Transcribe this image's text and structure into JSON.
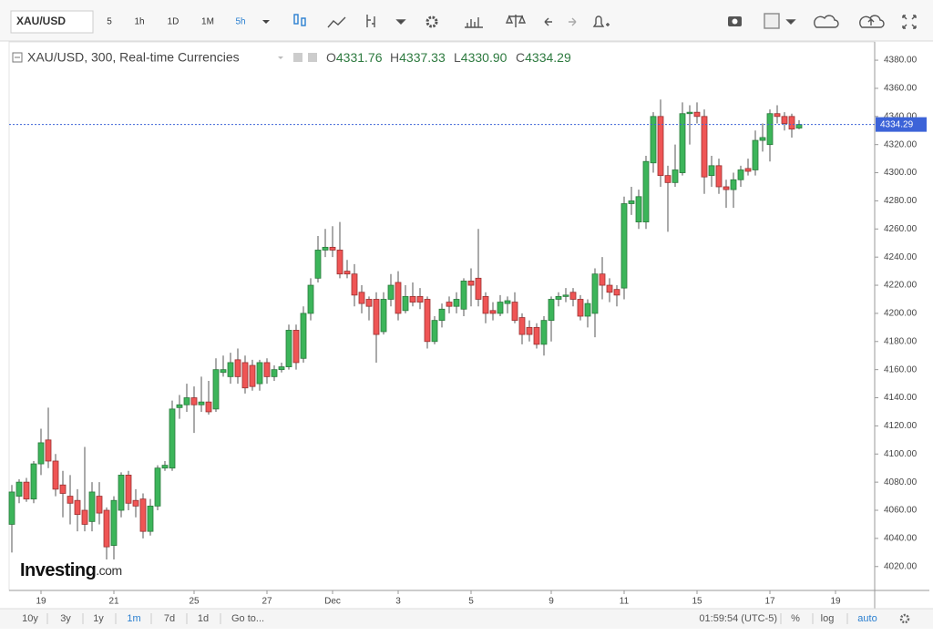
{
  "toolbar": {
    "symbol": "XAU/USD",
    "intervals": [
      "5",
      "1h",
      "1D",
      "1M",
      "5h"
    ],
    "active_interval": "5h"
  },
  "bottom_bar": {
    "ranges": [
      "10y",
      "3y",
      "1y",
      "1m",
      "7d",
      "1d"
    ],
    "active_range": "1m",
    "goto": "Go to...",
    "clock": "01:59:54 (UTC-5)",
    "scale_options": [
      "%",
      "log",
      "auto"
    ],
    "active_scale": "auto"
  },
  "watermark": {
    "brand": "Investing",
    "suffix": ".com"
  },
  "chart_data": {
    "type": "candlestick",
    "title": "XAU/USD, 300, Real-time Currencies",
    "ohlc_labels": [
      "O",
      "H",
      "L",
      "C"
    ],
    "ohlc_values": [
      "4331.76",
      "4337.33",
      "4330.90",
      "4334.29"
    ],
    "up_color": "#3cb55a",
    "down_color": "#ef5555",
    "last_price": 4334.29,
    "last_price_color": "#3c63d8",
    "categories": [
      null,
      null,
      null,
      null,
      "19",
      null,
      null,
      null,
      null,
      null,
      null,
      null,
      null,
      null,
      "21",
      null,
      null,
      null,
      null,
      null,
      null,
      null,
      null,
      null,
      null,
      "25",
      null,
      null,
      null,
      null,
      null,
      null,
      null,
      null,
      null,
      "27",
      null,
      null,
      null,
      null,
      null,
      null,
      null,
      null,
      "Dec",
      null,
      null,
      null,
      null,
      null,
      null,
      null,
      null,
      "3",
      null,
      null,
      null,
      null,
      null,
      null,
      null,
      null,
      null,
      "5",
      null,
      null,
      null,
      null,
      null,
      null,
      null,
      null,
      null,
      null,
      "9",
      null,
      null,
      null,
      null,
      null,
      null,
      null,
      null,
      null,
      "11",
      null,
      null,
      null,
      null,
      null,
      null,
      null,
      null,
      null,
      "15",
      null,
      null,
      null,
      null,
      null,
      null,
      null,
      null,
      null,
      "17",
      null,
      null,
      null,
      null,
      null,
      null,
      null,
      null,
      "19"
    ],
    "open": [
      4050,
      4070,
      4080,
      4068,
      4093,
      4110,
      4095,
      4078,
      4070,
      4067,
      4060,
      4052,
      4070,
      4060,
      4035,
      4060,
      4085,
      4067,
      4068,
      4045,
      4063,
      4090,
      4090,
      4133,
      4135,
      4140,
      4135,
      4137,
      4132,
      4158,
      4155,
      4167,
      4165,
      4163,
      4150,
      4165,
      4155,
      4160,
      4162,
      4188,
      4168,
      4200,
      4225,
      4245,
      4247,
      4245,
      4230,
      4228,
      4215,
      4210,
      4210,
      4187,
      4210,
      4222,
      4202,
      4212,
      4212,
      4210,
      4180,
      4195,
      4208,
      4205,
      4203,
      4223,
      4225,
      4212,
      4202,
      4200,
      4207,
      4208,
      4197,
      4190,
      4190,
      4178,
      4195,
      4210,
      4212,
      4215,
      4210,
      4198,
      4200,
      4228,
      4220,
      4217,
      4218,
      4278,
      4265,
      4265,
      4307,
      4340,
      4298,
      4293,
      4300,
      4342,
      4343,
      4340,
      4298,
      4305,
      4290,
      4288,
      4295,
      4303,
      4302,
      4323,
      4320,
      4342,
      4340,
      4340,
      4331.76,
      null,
      null,
      null,
      null,
      null
    ],
    "high": [
      4078,
      4082,
      4083,
      4095,
      4118,
      4133,
      4100,
      4088,
      4085,
      4075,
      4105,
      4080,
      4080,
      4062,
      4070,
      4087,
      4088,
      4075,
      4072,
      4068,
      4092,
      4095,
      4138,
      4142,
      4150,
      4148,
      4155,
      4152,
      4168,
      4170,
      4172,
      4175,
      4170,
      4167,
      4167,
      4168,
      4163,
      4165,
      4192,
      4192,
      4205,
      4225,
      4255,
      4260,
      4262,
      4265,
      4238,
      4235,
      4220,
      4212,
      4215,
      4215,
      4228,
      4230,
      4220,
      4222,
      4218,
      4212,
      4198,
      4207,
      4212,
      4215,
      4225,
      4232,
      4260,
      4215,
      4208,
      4213,
      4212,
      4215,
      4200,
      4195,
      4193,
      4198,
      4212,
      4215,
      4218,
      4218,
      4213,
      4210,
      4232,
      4240,
      4225,
      4220,
      4283,
      4290,
      4288,
      4312,
      4343,
      4352,
      4305,
      4320,
      4350,
      4348,
      4350,
      4345,
      4312,
      4310,
      4295,
      4300,
      4305,
      4310,
      4330,
      4335,
      4345,
      4348,
      4343,
      4342,
      4337.33,
      null,
      null,
      null,
      null,
      null
    ],
    "low": [
      4030,
      4065,
      4066,
      4065,
      4085,
      4090,
      4070,
      4055,
      4050,
      4045,
      4045,
      4045,
      4050,
      4025,
      4025,
      4055,
      4060,
      4055,
      4040,
      4042,
      4060,
      4088,
      4088,
      4125,
      4130,
      4115,
      4130,
      4128,
      4130,
      4155,
      4150,
      4150,
      4143,
      4145,
      4145,
      4150,
      4152,
      4158,
      4160,
      4160,
      4165,
      4195,
      4222,
      4240,
      4240,
      4225,
      4225,
      4205,
      4200,
      4195,
      4165,
      4185,
      4205,
      4195,
      4200,
      4205,
      4203,
      4175,
      4178,
      4190,
      4200,
      4200,
      4198,
      4205,
      4205,
      4193,
      4195,
      4198,
      4200,
      4193,
      4178,
      4180,
      4175,
      4170,
      4180,
      4205,
      4208,
      4205,
      4195,
      4190,
      4183,
      4210,
      4208,
      4205,
      4210,
      4270,
      4260,
      4260,
      4300,
      4290,
      4258,
      4290,
      4298,
      4320,
      4335,
      4285,
      4290,
      4285,
      4275,
      4275,
      4290,
      4298,
      4298,
      4315,
      4308,
      4335,
      4330,
      4325,
      4330.9,
      null,
      null,
      null,
      null,
      null
    ],
    "close": [
      4073,
      4080,
      4068,
      4093,
      4108,
      4095,
      4075,
      4072,
      4065,
      4057,
      4050,
      4073,
      4058,
      4034,
      4067,
      4085,
      4065,
      4063,
      4045,
      4063,
      4090,
      4092,
      4132,
      4135,
      4140,
      4135,
      4137,
      4130,
      4160,
      4160,
      4165,
      4155,
      4147,
      4148,
      4165,
      4155,
      4160,
      4162,
      4188,
      4165,
      4200,
      4220,
      4245,
      4247,
      4245,
      4228,
      4228,
      4213,
      4207,
      4205,
      4185,
      4210,
      4220,
      4200,
      4212,
      4208,
      4208,
      4180,
      4195,
      4203,
      4205,
      4210,
      4223,
      4220,
      4210,
      4200,
      4200,
      4208,
      4209,
      4195,
      4185,
      4185,
      4178,
      4195,
      4210,
      4212,
      4213,
      4210,
      4198,
      4207,
      4228,
      4220,
      4215,
      4213,
      4278,
      4280,
      4283,
      4308,
      4340,
      4298,
      4293,
      4302,
      4342,
      4343,
      4340,
      4297,
      4305,
      4290,
      4288,
      4295,
      4302,
      4301,
      4323,
      4325,
      4342,
      4340,
      4335,
      4331,
      4334.29,
      null,
      null,
      null,
      null,
      null
    ],
    "ylim": [
      4003,
      4393
    ],
    "yticks": [
      {
        "value": 4020,
        "label": "4020.00"
      },
      {
        "value": 4040,
        "label": "4040.00"
      },
      {
        "value": 4060,
        "label": "4060.00"
      },
      {
        "value": 4080,
        "label": "4080.00"
      },
      {
        "value": 4100,
        "label": "4100.00"
      },
      {
        "value": 4120,
        "label": "4120.00"
      },
      {
        "value": 4140,
        "label": "4140.00"
      },
      {
        "value": 4160,
        "label": "4160.00"
      },
      {
        "value": 4180,
        "label": "4180.00"
      },
      {
        "value": 4200,
        "label": "4200.00"
      },
      {
        "value": 4220,
        "label": "4220.00"
      },
      {
        "value": 4240,
        "label": "4240.00"
      },
      {
        "value": 4260,
        "label": "4260.00"
      },
      {
        "value": 4280,
        "label": "4280.00"
      },
      {
        "value": 4300,
        "label": "4300.00"
      },
      {
        "value": 4320,
        "label": "4320.00"
      },
      {
        "value": 4340,
        "label": "4340.00"
      },
      {
        "value": 4360,
        "label": "4360.00"
      },
      {
        "value": 4380,
        "label": "4380.00"
      }
    ],
    "grid": false
  }
}
